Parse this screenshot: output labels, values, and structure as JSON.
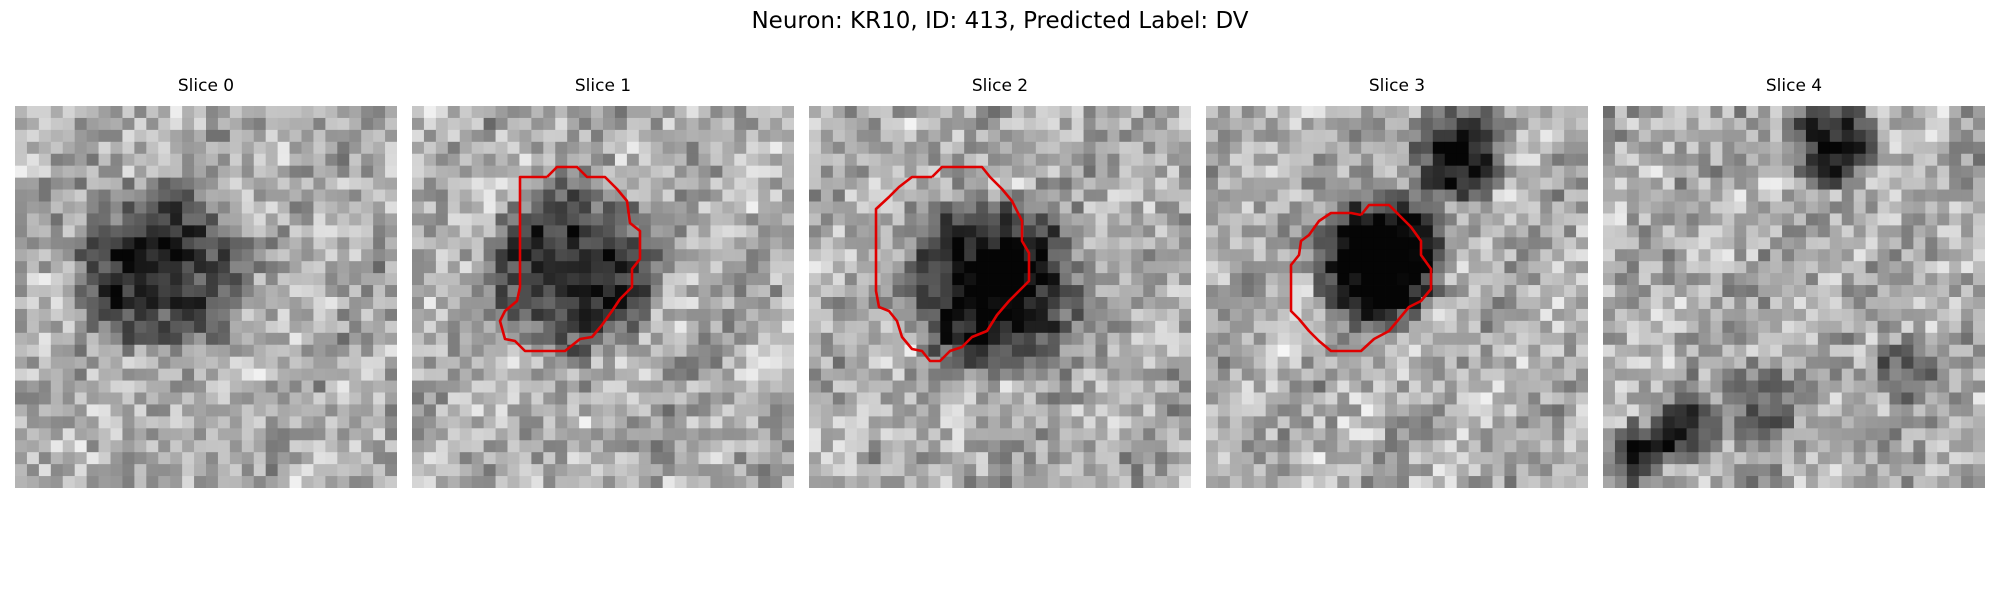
{
  "figure": {
    "title": "Neuron: KR10, ID: 413, Predicted Label: DV",
    "contour_color": "#e00000",
    "colormap": "grayscale",
    "grid_size": 32,
    "panels": [
      {
        "title": "Slice 0",
        "has_contour": false
      },
      {
        "title": "Slice 1",
        "has_contour": true
      },
      {
        "title": "Slice 2",
        "has_contour": true
      },
      {
        "title": "Slice 3",
        "has_contour": true
      },
      {
        "title": "Slice 4",
        "has_contour": false
      }
    ]
  }
}
